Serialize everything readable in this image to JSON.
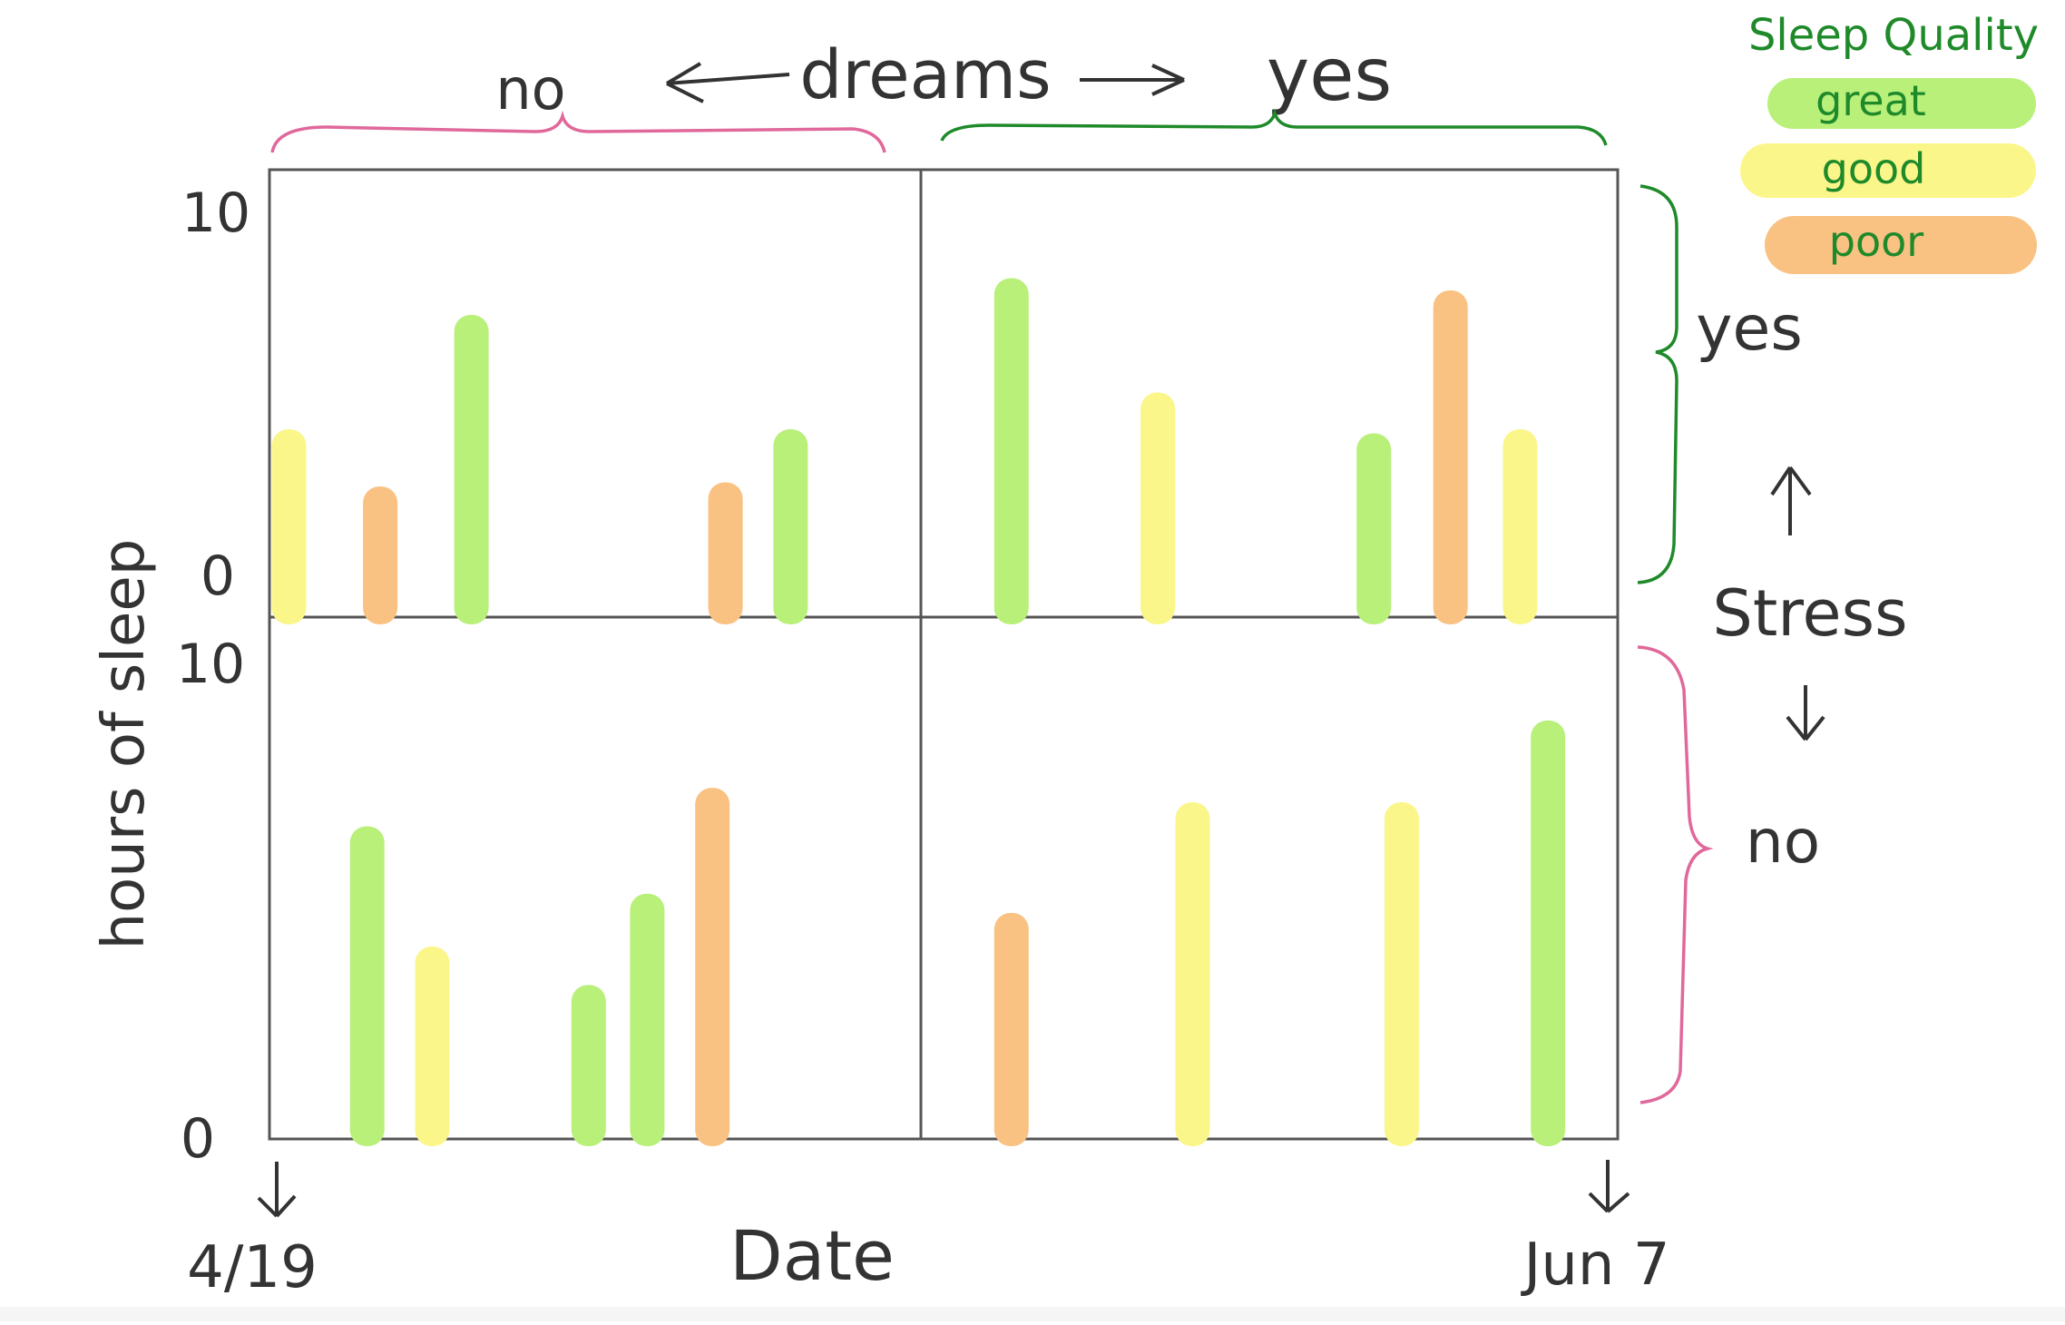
{
  "chart_data": {
    "type": "bar",
    "layout": "2x2 small multiples",
    "column_facet": {
      "label": "dreams",
      "values": [
        "no",
        "yes"
      ]
    },
    "row_facet": {
      "label": "Stress",
      "values": [
        "yes",
        "no"
      ]
    },
    "xlabel": "Date",
    "x_range": [
      "4/19",
      "Jun 7"
    ],
    "ylabel": "hours of sleep",
    "ylim": [
      0,
      10
    ],
    "y_ticks": [
      "10",
      "0"
    ],
    "legend": {
      "title": "Sleep Quality",
      "position": "top-right",
      "entries": [
        {
          "label": "great",
          "color": "#b8f07a"
        },
        {
          "label": "good",
          "color": "#fbf68a"
        },
        {
          "label": "poor",
          "color": "#f9c283"
        }
      ]
    },
    "panels": [
      {
        "dreams": "no",
        "stress": "yes",
        "bars": [
          {
            "x": 0.03,
            "value": 4.6,
            "quality": "good"
          },
          {
            "x": 0.17,
            "value": 3.2,
            "quality": "poor"
          },
          {
            "x": 0.31,
            "value": 7.4,
            "quality": "great"
          },
          {
            "x": 0.7,
            "value": 3.3,
            "quality": "poor"
          },
          {
            "x": 0.8,
            "value": 4.6,
            "quality": "great"
          }
        ]
      },
      {
        "dreams": "yes",
        "stress": "yes",
        "bars": [
          {
            "x": 0.13,
            "value": 8.3,
            "quality": "great"
          },
          {
            "x": 0.34,
            "value": 5.5,
            "quality": "good"
          },
          {
            "x": 0.65,
            "value": 4.5,
            "quality": "great"
          },
          {
            "x": 0.76,
            "value": 8.0,
            "quality": "poor"
          },
          {
            "x": 0.86,
            "value": 4.6,
            "quality": "good"
          }
        ]
      },
      {
        "dreams": "no",
        "stress": "no",
        "bars": [
          {
            "x": 0.15,
            "value": 6.5,
            "quality": "great"
          },
          {
            "x": 0.25,
            "value": 4.0,
            "quality": "good"
          },
          {
            "x": 0.49,
            "value": 3.2,
            "quality": "great"
          },
          {
            "x": 0.58,
            "value": 5.1,
            "quality": "great"
          },
          {
            "x": 0.68,
            "value": 7.3,
            "quality": "poor"
          }
        ]
      },
      {
        "dreams": "yes",
        "stress": "no",
        "bars": [
          {
            "x": 0.13,
            "value": 4.7,
            "quality": "poor"
          },
          {
            "x": 0.39,
            "value": 7.0,
            "quality": "good"
          },
          {
            "x": 0.69,
            "value": 7.0,
            "quality": "good"
          },
          {
            "x": 0.9,
            "value": 8.7,
            "quality": "great"
          }
        ]
      }
    ]
  },
  "labels": {
    "dreams_title": "dreams",
    "dreams_no": "no",
    "dreams_yes": "yes",
    "stress_title": "Stress",
    "stress_yes": "yes",
    "stress_no": "no",
    "date_title": "Date",
    "date_start": "4/19",
    "date_end": "Jun 7",
    "y_title": "hours of sleep",
    "y_top_upper": "10",
    "y_zero_upper": "0",
    "y_top_lower": "10",
    "y_zero_lower": "0",
    "legend_title": "Sleep Quality",
    "legend_great": "great",
    "legend_good": "good",
    "legend_poor": "poor"
  },
  "colors": {
    "ink": "#333333",
    "green_ink": "#1f8a2a",
    "pink_ink": "#e0689a",
    "grid": "#555555"
  }
}
